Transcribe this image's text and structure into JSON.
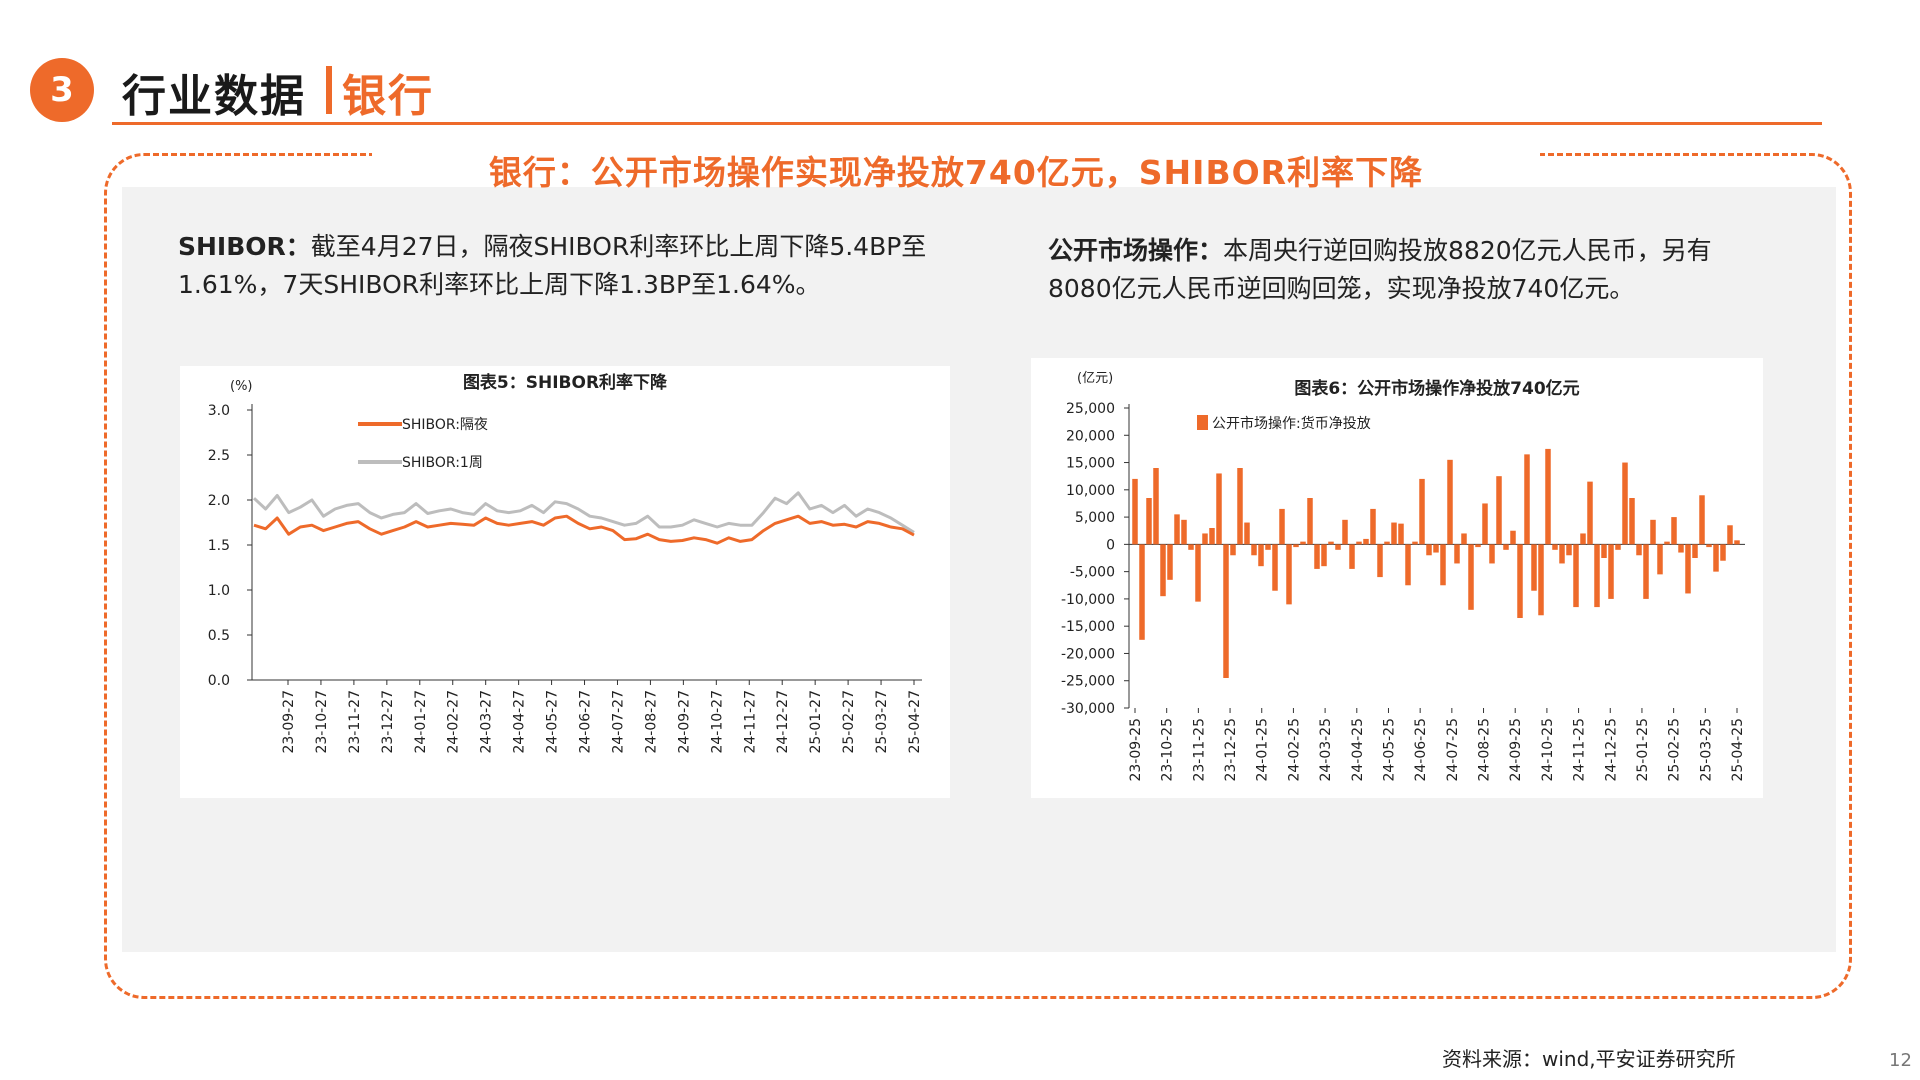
{
  "header": {
    "section_number": "3",
    "title": "行业数据",
    "subtitle": "银行"
  },
  "banner": "银行：公开市场操作实现净投放740亿元，SHIBOR利率下降",
  "left_text": {
    "lead": "SHIBOR：",
    "body": "截至4月27日，隔夜SHIBOR利率环比上周下降5.4BP至1.61%，7天SHIBOR利率环比上周下降1.3BP至1.64%。"
  },
  "right_text": {
    "lead": "公开市场操作：",
    "body": "本周央行逆回购投放8820亿元人民币，另有8080亿元人民币逆回购回笼，实现净投放740亿元。"
  },
  "source": "资料来源：wind,平安证券研究所",
  "page_number": "12",
  "colors": {
    "accent": "#ee6a2a",
    "series_gray": "#bdbdbd",
    "panel_bg": "#f2f2f2"
  },
  "chart_data": [
    {
      "type": "line",
      "title": "图表5：SHIBOR利率下降",
      "ylabel": "(%)",
      "ylim": [
        0,
        3.0
      ],
      "yticks": [
        "0.0",
        "0.5",
        "1.0",
        "1.5",
        "2.0",
        "2.5",
        "3.0"
      ],
      "xticks": [
        "23-09-27",
        "23-10-27",
        "23-11-27",
        "23-12-27",
        "24-01-27",
        "24-02-27",
        "24-03-27",
        "24-04-27",
        "24-05-27",
        "24-06-27",
        "24-07-27",
        "24-08-27",
        "24-09-27",
        "24-10-27",
        "24-11-27",
        "24-12-27",
        "25-01-27",
        "25-02-27",
        "25-03-27",
        "25-04-27"
      ],
      "legend": "top-left",
      "series": [
        {
          "name": "SHIBOR:隔夜",
          "color": "#ee6a2a",
          "values": [
            1.72,
            1.68,
            1.8,
            1.62,
            1.7,
            1.72,
            1.66,
            1.7,
            1.74,
            1.76,
            1.68,
            1.62,
            1.66,
            1.7,
            1.76,
            1.7,
            1.72,
            1.74,
            1.73,
            1.72,
            1.8,
            1.74,
            1.72,
            1.74,
            1.76,
            1.72,
            1.8,
            1.82,
            1.74,
            1.68,
            1.7,
            1.66,
            1.56,
            1.57,
            1.62,
            1.56,
            1.54,
            1.55,
            1.58,
            1.56,
            1.52,
            1.58,
            1.54,
            1.56,
            1.66,
            1.74,
            1.78,
            1.82,
            1.74,
            1.76,
            1.72,
            1.73,
            1.7,
            1.76,
            1.74,
            1.7,
            1.68,
            1.61
          ]
        },
        {
          "name": "SHIBOR:1周",
          "color": "#bdbdbd",
          "values": [
            2.02,
            1.9,
            2.05,
            1.86,
            1.92,
            2.0,
            1.82,
            1.9,
            1.94,
            1.96,
            1.86,
            1.8,
            1.84,
            1.86,
            1.96,
            1.85,
            1.88,
            1.9,
            1.86,
            1.84,
            1.96,
            1.88,
            1.86,
            1.88,
            1.94,
            1.86,
            1.98,
            1.96,
            1.9,
            1.82,
            1.8,
            1.76,
            1.72,
            1.74,
            1.82,
            1.7,
            1.7,
            1.72,
            1.78,
            1.74,
            1.7,
            1.74,
            1.72,
            1.72,
            1.86,
            2.02,
            1.96,
            2.08,
            1.9,
            1.94,
            1.86,
            1.94,
            1.82,
            1.9,
            1.86,
            1.8,
            1.72,
            1.64
          ]
        }
      ]
    },
    {
      "type": "bar",
      "title": "图表6：公开市场操作净投放740亿元",
      "ylabel": "(亿元)",
      "ylim": [
        -30000,
        25000
      ],
      "yticks": [
        "25,000",
        "20,000",
        "15,000",
        "10,000",
        "5,000",
        "0",
        "-5,000",
        "-10,000",
        "-15,000",
        "-20,000",
        "-25,000",
        "-30,000"
      ],
      "xticks": [
        "23-09-25",
        "23-10-25",
        "23-11-25",
        "23-12-25",
        "24-01-25",
        "24-02-25",
        "24-03-25",
        "24-04-25",
        "24-05-25",
        "24-06-25",
        "24-07-25",
        "24-08-25",
        "24-09-25",
        "24-10-25",
        "24-11-25",
        "24-12-25",
        "25-01-25",
        "25-02-25",
        "25-03-25",
        "25-04-25"
      ],
      "legend": "top-left",
      "series": [
        {
          "name": "公开市场操作:货币净投放",
          "color": "#ee6a2a",
          "values": [
            12000,
            -17500,
            8500,
            14000,
            -9500,
            -6500,
            5500,
            4500,
            -1000,
            -10500,
            2000,
            3000,
            13000,
            -24500,
            -2000,
            14000,
            4000,
            -2000,
            -4000,
            -1000,
            -8500,
            6500,
            -11000,
            -500,
            500,
            8500,
            -4500,
            -4000,
            500,
            -1000,
            4500,
            -4500,
            500,
            1000,
            6500,
            -6000,
            500,
            4000,
            3800,
            -7500,
            500,
            12000,
            -2000,
            -1500,
            -7500,
            15500,
            -3500,
            2000,
            -12000,
            -500,
            7500,
            -3500,
            12500,
            -1000,
            2500,
            -13500,
            16500,
            -8500,
            -13000,
            17500,
            -1000,
            -3500,
            -2000,
            -11500,
            2000,
            11500,
            -11500,
            -2500,
            -10000,
            -1000,
            15000,
            8500,
            -2000,
            -10000,
            4500,
            -5500,
            500,
            5000,
            -1500,
            -9000,
            -2500,
            9000,
            -500,
            -5000,
            -3000,
            3500,
            740
          ]
        }
      ]
    }
  ]
}
